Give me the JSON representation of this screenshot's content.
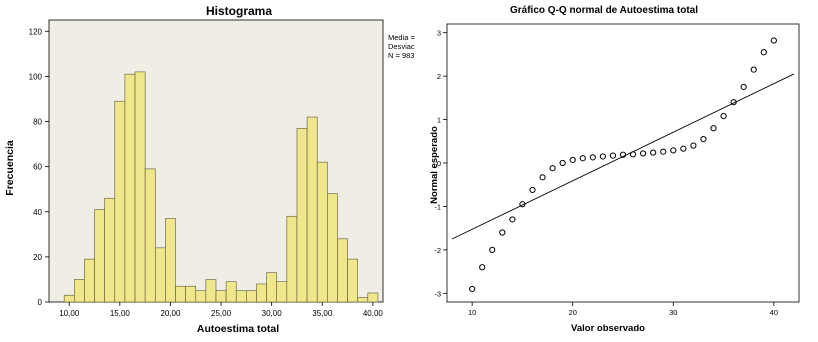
{
  "chart_data": [
    {
      "type": "bar",
      "title": "Histograma",
      "xlabel": "Autoestima total",
      "ylabel": "Frecuencia",
      "xlim": [
        8,
        41
      ],
      "ylim": [
        0,
        125
      ],
      "xticks": [
        10,
        15,
        20,
        25,
        30,
        35,
        40
      ],
      "xtick_labels": [
        "10,00",
        "15,00",
        "20,00",
        "25,00",
        "30,00",
        "35,00",
        "40,00"
      ],
      "yticks": [
        0,
        20,
        40,
        60,
        80,
        100,
        120
      ],
      "ytick_labels": [
        "0",
        "20",
        "40",
        "60",
        "80",
        "100",
        "120"
      ],
      "bin_width": 1,
      "bin_centers": [
        10,
        11,
        12,
        13,
        14,
        15,
        16,
        17,
        18,
        19,
        20,
        21,
        22,
        23,
        24,
        25,
        26,
        27,
        28,
        29,
        30,
        31,
        32,
        33,
        34,
        35,
        36,
        37,
        38,
        39,
        40
      ],
      "values": [
        3,
        10,
        19,
        41,
        46,
        89,
        101,
        102,
        59,
        24,
        37,
        7,
        7,
        5,
        10,
        5,
        9,
        5,
        5,
        8,
        13,
        9,
        38,
        77,
        82,
        62,
        48,
        28,
        19,
        2,
        4
      ],
      "bar_color": "#f0e68c",
      "stats_box": [
        "Media =",
        "Desviac",
        "N = 983"
      ],
      "grid": false
    },
    {
      "type": "scatter",
      "title": "Gráfico Q-Q normal de Autoestima total",
      "xlabel": "Valor observado",
      "ylabel": "Normal esperado",
      "xlim": [
        7.5,
        42.5
      ],
      "ylim": [
        -3.2,
        3.2
      ],
      "xticks": [
        10,
        20,
        30,
        40
      ],
      "xtick_labels": [
        "10",
        "20",
        "30",
        "40"
      ],
      "yticks": [
        -3,
        -2,
        -1,
        0,
        1,
        2,
        3
      ],
      "ytick_labels": [
        "-3",
        "-2",
        "-1",
        "0",
        "1",
        "2",
        "3"
      ],
      "points": [
        [
          10,
          -2.9
        ],
        [
          11,
          -2.4
        ],
        [
          12,
          -2.0
        ],
        [
          13,
          -1.6
        ],
        [
          14,
          -1.3
        ],
        [
          15,
          -0.95
        ],
        [
          16,
          -0.62
        ],
        [
          17,
          -0.33
        ],
        [
          18,
          -0.12
        ],
        [
          19,
          0.0
        ],
        [
          20,
          0.07
        ],
        [
          21,
          0.11
        ],
        [
          22,
          0.13
        ],
        [
          23,
          0.15
        ],
        [
          24,
          0.17
        ],
        [
          25,
          0.19
        ],
        [
          26,
          0.2
        ],
        [
          27,
          0.22
        ],
        [
          28,
          0.24
        ],
        [
          29,
          0.26
        ],
        [
          30,
          0.29
        ],
        [
          31,
          0.33
        ],
        [
          32,
          0.4
        ],
        [
          33,
          0.55
        ],
        [
          34,
          0.8
        ],
        [
          35,
          1.08
        ],
        [
          36,
          1.4
        ],
        [
          37,
          1.75
        ],
        [
          38,
          2.15
        ],
        [
          39,
          2.55
        ],
        [
          40,
          2.82
        ]
      ],
      "reference_line": [
        [
          8,
          -1.75
        ],
        [
          42,
          2.05
        ]
      ],
      "grid": false
    }
  ]
}
